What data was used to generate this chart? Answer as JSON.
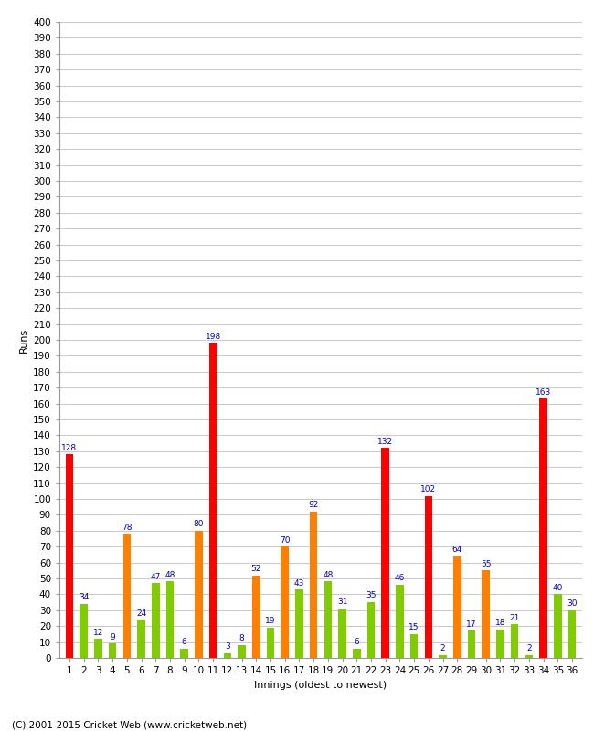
{
  "xlabel": "Innings (oldest to newest)",
  "ylabel": "Runs",
  "footer": "(C) 2001-2015 Cricket Web (www.cricketweb.net)",
  "ylim": [
    0,
    400
  ],
  "yticks": [
    0,
    10,
    20,
    30,
    40,
    50,
    60,
    70,
    80,
    90,
    100,
    110,
    120,
    130,
    140,
    150,
    160,
    170,
    180,
    190,
    200,
    210,
    220,
    230,
    240,
    250,
    260,
    270,
    280,
    290,
    300,
    310,
    320,
    330,
    340,
    350,
    360,
    370,
    380,
    390,
    400
  ],
  "innings": [
    1,
    2,
    3,
    4,
    5,
    6,
    7,
    8,
    9,
    10,
    11,
    12,
    13,
    14,
    15,
    16,
    17,
    18,
    19,
    20,
    21,
    22,
    23,
    24,
    25,
    26,
    27,
    28,
    29,
    30,
    31,
    32,
    33,
    34,
    35,
    36
  ],
  "values": [
    128,
    34,
    12,
    9,
    78,
    24,
    47,
    48,
    6,
    80,
    198,
    3,
    8,
    52,
    19,
    70,
    43,
    92,
    48,
    31,
    6,
    35,
    132,
    46,
    15,
    102,
    2,
    64,
    17,
    55,
    18,
    21,
    2,
    163,
    40,
    30
  ],
  "colors": [
    "red",
    "green",
    "green",
    "green",
    "orange",
    "green",
    "green",
    "green",
    "green",
    "orange",
    "red",
    "green",
    "green",
    "orange",
    "green",
    "orange",
    "green",
    "orange",
    "green",
    "green",
    "green",
    "green",
    "red",
    "green",
    "green",
    "red",
    "green",
    "orange",
    "green",
    "orange",
    "green",
    "green",
    "green",
    "red",
    "green",
    "green"
  ],
  "x_labels": [
    "1",
    "2",
    "3",
    "4",
    "5",
    "6",
    "7",
    "8",
    "9",
    "10",
    "11",
    "12",
    "13",
    "14",
    "15",
    "16",
    "17",
    "18",
    "19",
    "20",
    "21",
    "22",
    "23",
    "24",
    "25",
    "26",
    "27",
    "28",
    "29",
    "30",
    "31",
    "32",
    "33",
    "34",
    "35",
    "36"
  ],
  "bar_color_red": "#ff0000",
  "bar_color_orange": "#ff8000",
  "bar_color_green": "#80cc00",
  "bg_color": "#ffffff",
  "grid_color": "#cccccc",
  "label_color": "#0000cc",
  "label_fontsize": 6.5,
  "axis_fontsize": 8,
  "tick_fontsize": 7.5
}
